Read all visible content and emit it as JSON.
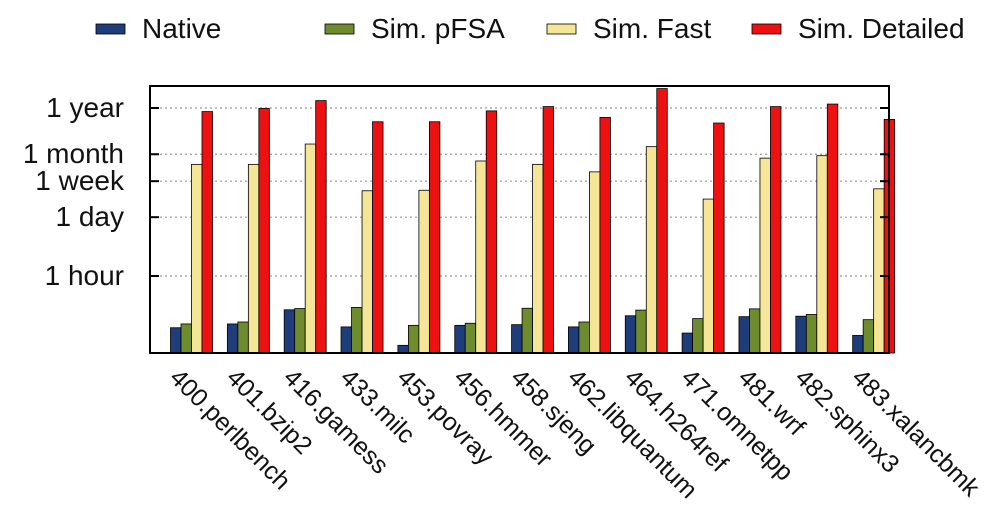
{
  "chart_data": {
    "type": "bar",
    "y_scale": "log",
    "y_unit": "seconds",
    "categories": [
      "400.perlbench",
      "401.bzip2",
      "416.gamess",
      "433.milc",
      "453.povray",
      "456.hmmer",
      "458.sjeng",
      "462.libquantum",
      "464.h264ref",
      "471.omnetpp",
      "481.wrf",
      "482.sphinx3",
      "483.xalancbmk"
    ],
    "series": [
      {
        "name": "Native",
        "color": "#1f3d7a",
        "values": [
          220,
          270,
          580,
          230,
          85,
          250,
          260,
          230,
          420,
          165,
          400,
          410,
          145
        ]
      },
      {
        "name": "Sim. pFSA",
        "color": "#6e8b2d",
        "values": [
          270,
          300,
          620,
          660,
          250,
          280,
          630,
          300,
          570,
          360,
          610,
          450,
          340
        ]
      },
      {
        "name": "Sim. Fast",
        "color": "#f5e597",
        "values": [
          1500000,
          1500000,
          4500000,
          360000,
          370000,
          1800000,
          1500000,
          1000000,
          3900000,
          230000,
          2100000,
          2400000,
          400000
        ]
      },
      {
        "name": "Sim. Detailed",
        "color": "#ee1111",
        "values": [
          26000000,
          31000000,
          47000000,
          15000000,
          15000000,
          27000000,
          34000000,
          19000000,
          90000000,
          14000000,
          34000000,
          39000000,
          17000000
        ]
      }
    ],
    "y_ticks": [
      {
        "label": "1 hour",
        "value": 3600
      },
      {
        "label": "1 day",
        "value": 86400
      },
      {
        "label": "1 week",
        "value": 604800
      },
      {
        "label": "1 month",
        "value": 2592000
      },
      {
        "label": "1 year",
        "value": 31536000
      }
    ],
    "ylim": [
      50,
      120000000
    ],
    "grid": "horizontal dotted",
    "legend_position": "top"
  }
}
